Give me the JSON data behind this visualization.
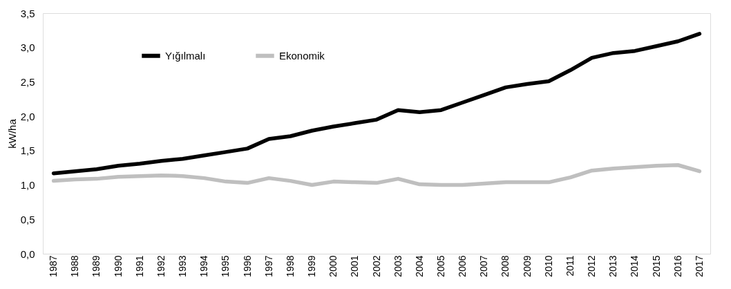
{
  "chart_data": {
    "type": "line",
    "ylabel": "kW/ha",
    "categories": [
      "1987",
      "1988",
      "1989",
      "1990",
      "1991",
      "1992",
      "1993",
      "1994",
      "1995",
      "1996",
      "1997",
      "1998",
      "1999",
      "2000",
      "2001",
      "2002",
      "2003",
      "2004",
      "2005",
      "2006",
      "2007",
      "2008",
      "2009",
      "2010",
      "2011",
      "2012",
      "2013",
      "2014",
      "2015",
      "2016",
      "2017"
    ],
    "series": [
      {
        "name": "Yığılmalı",
        "color": "#000000",
        "values": [
          1.17,
          1.2,
          1.23,
          1.28,
          1.31,
          1.35,
          1.38,
          1.43,
          1.48,
          1.53,
          1.67,
          1.71,
          1.79,
          1.85,
          1.9,
          1.95,
          2.09,
          2.06,
          2.09,
          2.2,
          2.31,
          2.42,
          2.47,
          2.51,
          2.67,
          2.85,
          2.92,
          2.95,
          3.02,
          3.09,
          3.2
        ]
      },
      {
        "name": "Ekonomik",
        "color": "#bfbfbf",
        "values": [
          1.06,
          1.08,
          1.09,
          1.12,
          1.13,
          1.14,
          1.13,
          1.1,
          1.05,
          1.03,
          1.1,
          1.06,
          1.0,
          1.05,
          1.04,
          1.03,
          1.09,
          1.01,
          1.0,
          1.0,
          1.02,
          1.04,
          1.04,
          1.04,
          1.11,
          1.21,
          1.24,
          1.26,
          1.28,
          1.29,
          1.2
        ]
      }
    ],
    "ylim": [
      0,
      3.5
    ],
    "yticks": [
      {
        "value": 0,
        "label": "0,0"
      },
      {
        "value": 0.5,
        "label": "0,5"
      },
      {
        "value": 1,
        "label": "1,0"
      },
      {
        "value": 1.5,
        "label": "1,5"
      },
      {
        "value": 2,
        "label": "2,0"
      },
      {
        "value": 2.5,
        "label": "2,5"
      },
      {
        "value": 3,
        "label": "3,0"
      },
      {
        "value": 3.5,
        "label": "3,5"
      }
    ],
    "grid": false,
    "legend": "top left",
    "marker": "none",
    "line_style": "solid"
  }
}
